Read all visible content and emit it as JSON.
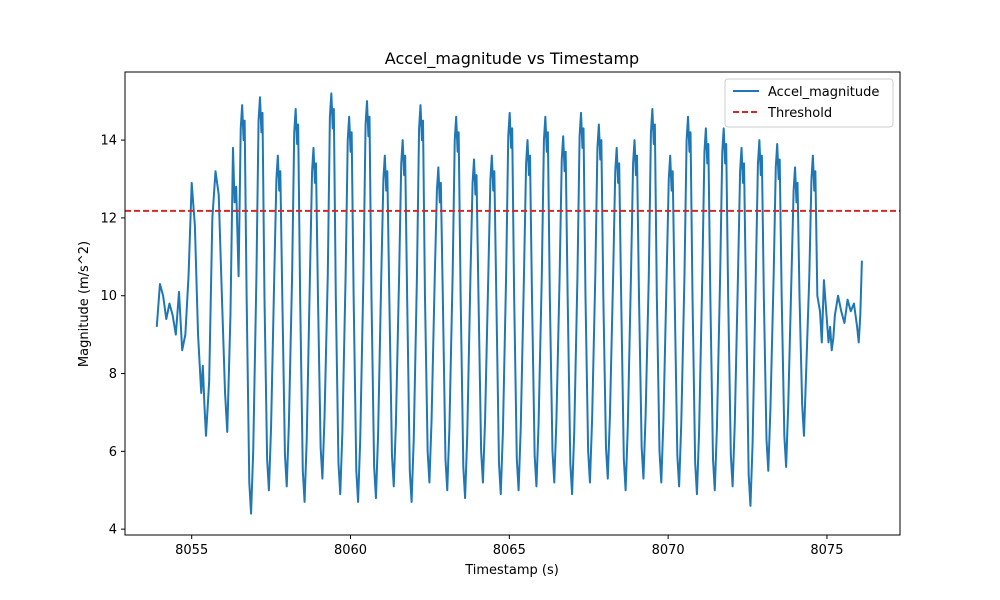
{
  "chart_data": {
    "type": "line",
    "title": "Accel_magnitude vs Timestamp",
    "xlabel": "Timestamp (s)",
    "ylabel": "Magnitude (m/s^2)",
    "xlim": [
      8052.9,
      8077.3
    ],
    "ylim": [
      3.85,
      15.75
    ],
    "xticks": [
      8055,
      8060,
      8065,
      8070,
      8075
    ],
    "xtick_labels": [
      "8055",
      "8060",
      "8065",
      "8070",
      "8075"
    ],
    "yticks": [
      4,
      6,
      8,
      10,
      12,
      14
    ],
    "ytick_labels": [
      "4",
      "6",
      "8",
      "10",
      "12",
      "14"
    ],
    "grid": false,
    "legend_position": "top-right",
    "series": [
      {
        "name": "Accel_magnitude",
        "kind": "line",
        "color": "#1f77b4",
        "start": 8053.9,
        "end": 8076.1,
        "intro": [
          [
            8053.9,
            9.2
          ],
          [
            8054.0,
            10.3
          ],
          [
            8054.1,
            10.0
          ],
          [
            8054.2,
            9.4
          ],
          [
            8054.3,
            9.8
          ],
          [
            8054.4,
            9.5
          ],
          [
            8054.5,
            9.0
          ],
          [
            8054.6,
            10.1
          ],
          [
            8054.7,
            8.6
          ],
          [
            8054.8,
            9.0
          ],
          [
            8054.9,
            10.5
          ],
          [
            8055.0,
            12.9
          ],
          [
            8055.1,
            11.8
          ],
          [
            8055.2,
            9.0
          ],
          [
            8055.3,
            7.5
          ],
          [
            8055.35,
            8.2
          ],
          [
            8055.4,
            7.2
          ],
          [
            8055.45,
            6.4
          ],
          [
            8055.55,
            7.8
          ],
          [
            8055.65,
            12.0
          ],
          [
            8055.75,
            13.2
          ],
          [
            8055.85,
            12.6
          ],
          [
            8055.95,
            10.0
          ],
          [
            8056.05,
            7.5
          ],
          [
            8056.12,
            6.5
          ],
          [
            8056.22,
            9.5
          ],
          [
            8056.3,
            13.8
          ],
          [
            8056.35,
            12.4
          ],
          [
            8056.4,
            12.8
          ]
        ],
        "peaks": [
          14.9,
          15.1,
          13.6,
          14.8,
          13.8,
          15.2,
          14.6,
          15.0,
          13.6,
          14.0,
          14.9,
          13.3,
          14.6,
          13.5,
          13.6,
          14.7,
          14.0,
          14.6,
          14.1,
          14.7,
          14.4,
          13.8,
          14.0,
          14.8,
          13.6,
          14.6,
          14.3,
          14.3,
          13.8,
          14.0,
          13.9,
          13.3,
          13.6
        ],
        "troughs": [
          4.4,
          5.0,
          5.1,
          4.7,
          5.3,
          4.9,
          4.7,
          4.8,
          5.1,
          4.7,
          5.2,
          5.0,
          4.8,
          5.2,
          4.9,
          5.0,
          5.1,
          5.2,
          4.9,
          5.2,
          5.3,
          5.0,
          5.3,
          5.2,
          5.1,
          4.9,
          5.0,
          5.1,
          4.6,
          5.5,
          5.6,
          6.4
        ],
        "outro": [
          [
            8075.05,
            8.8
          ],
          [
            8075.1,
            9.2
          ],
          [
            8075.15,
            8.6
          ],
          [
            8075.2,
            8.9
          ],
          [
            8075.25,
            9.5
          ],
          [
            8075.35,
            10.0
          ],
          [
            8075.45,
            9.6
          ],
          [
            8075.55,
            9.3
          ],
          [
            8075.65,
            9.9
          ],
          [
            8075.75,
            9.6
          ],
          [
            8075.85,
            9.8
          ],
          [
            8075.95,
            9.2
          ],
          [
            8076.0,
            8.8
          ],
          [
            8076.05,
            9.5
          ],
          [
            8076.1,
            10.9
          ]
        ]
      },
      {
        "name": "Threshold",
        "kind": "hline",
        "color": "#d62728",
        "dash": true,
        "value": 12.18
      }
    ]
  }
}
